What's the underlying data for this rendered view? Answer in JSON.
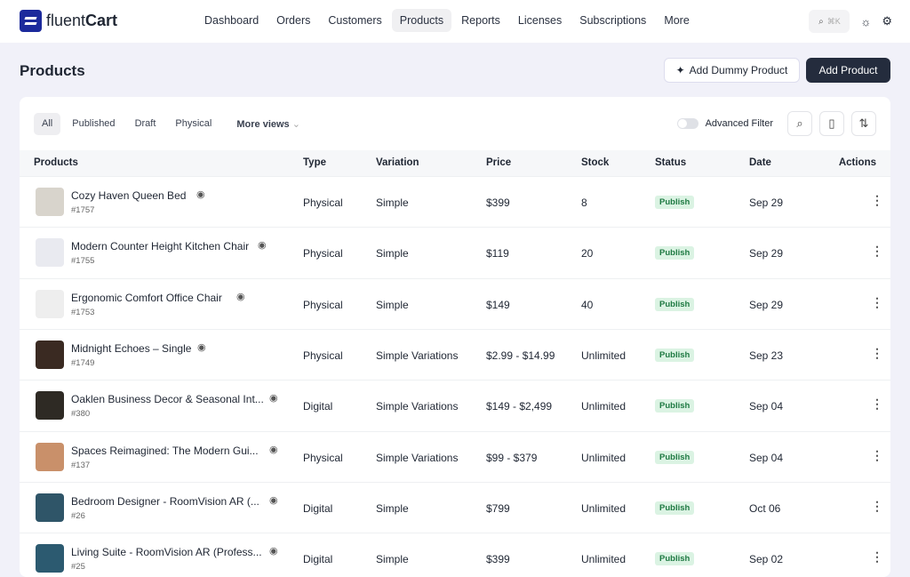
{
  "brand": {
    "name_light": "fluent",
    "name_bold": "Cart"
  },
  "nav": [
    "Dashboard",
    "Orders",
    "Customers",
    "Products",
    "Reports",
    "Licenses",
    "Subscriptions",
    "More"
  ],
  "nav_active": "Products",
  "search_shortcut": "⌘K",
  "page_title": "Products",
  "buttons": {
    "dummy": "Add Dummy Product",
    "add": "Add Product"
  },
  "views": [
    "All",
    "Published",
    "Draft",
    "Physical"
  ],
  "more_views": "More views",
  "advanced_filter": "Advanced Filter",
  "columns": [
    "Products",
    "Type",
    "Variation",
    "Price",
    "Stock",
    "Status",
    "Date",
    "Actions"
  ],
  "rows": [
    {
      "name": "Cozy Haven Queen Bed",
      "id": "#1757",
      "type": "Physical",
      "variation": "Simple",
      "price": "$399",
      "stock": "8",
      "status": "Publish",
      "date": "Sep 29",
      "thumb": "#d8d4cc"
    },
    {
      "name": "Modern Counter Height Kitchen Chair",
      "id": "#1755",
      "type": "Physical",
      "variation": "Simple",
      "price": "$119",
      "stock": "20",
      "status": "Publish",
      "date": "Sep 29",
      "thumb": "#e9eaf0"
    },
    {
      "name": "Ergonomic Comfort Office Chair",
      "id": "#1753",
      "type": "Physical",
      "variation": "Simple",
      "price": "$149",
      "stock": "40",
      "status": "Publish",
      "date": "Sep 29",
      "thumb": "#eeeeee"
    },
    {
      "name": "Midnight Echoes – Single",
      "id": "#1749",
      "type": "Physical",
      "variation": "Simple Variations",
      "price": "$2.99 - $14.99",
      "stock": "Unlimited",
      "status": "Publish",
      "date": "Sep 23",
      "thumb": "#3a2a22"
    },
    {
      "name": "Oaklen Business Decor & Seasonal Int...",
      "id": "#380",
      "type": "Digital",
      "variation": "Simple Variations",
      "price": "$149 - $2,499",
      "stock": "Unlimited",
      "status": "Publish",
      "date": "Sep 04",
      "thumb": "#2e2a24"
    },
    {
      "name": "Spaces Reimagined: The Modern Gui...",
      "id": "#137",
      "type": "Physical",
      "variation": "Simple Variations",
      "price": "$99 - $379",
      "stock": "Unlimited",
      "status": "Publish",
      "date": "Sep 04",
      "thumb": "#c9906a"
    },
    {
      "name": "Bedroom Designer - RoomVision AR (...",
      "id": "#26",
      "type": "Digital",
      "variation": "Simple",
      "price": "$799",
      "stock": "Unlimited",
      "status": "Publish",
      "date": "Oct 06",
      "thumb": "#2f5568"
    },
    {
      "name": "Living Suite - RoomVision AR (Profess...",
      "id": "#25",
      "type": "Digital",
      "variation": "Simple",
      "price": "$399",
      "stock": "Unlimited",
      "status": "Publish",
      "date": "Sep 02",
      "thumb": "#2c5a70"
    }
  ]
}
